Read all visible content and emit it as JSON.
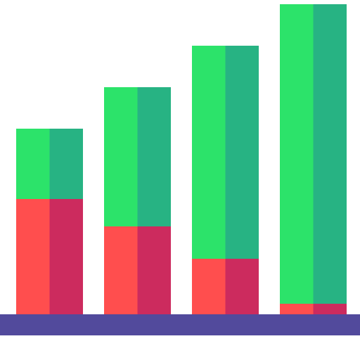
{
  "icon": {
    "name": "stacked-bar-chart-icon",
    "colors": {
      "green_light": "#2ce36a",
      "green_dark": "#27b383",
      "red_light": "#ff4e4e",
      "red_dark": "#cc2b5e",
      "base": "#524a9c",
      "background": "#ffffff"
    }
  }
}
